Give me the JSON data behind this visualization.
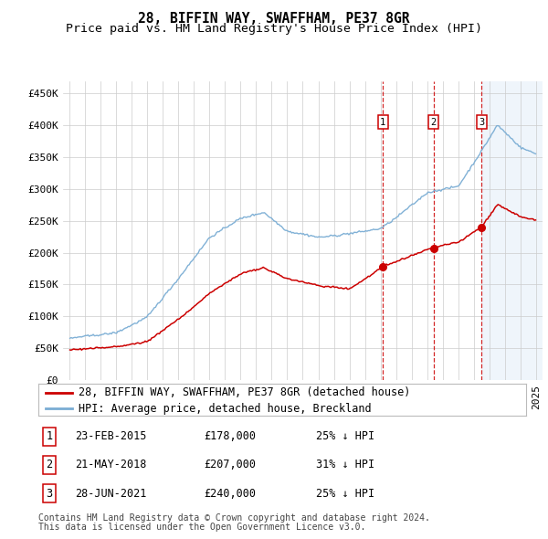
{
  "title": "28, BIFFIN WAY, SWAFFHAM, PE37 8GR",
  "subtitle": "Price paid vs. HM Land Registry's House Price Index (HPI)",
  "ylim": [
    0,
    470000
  ],
  "yticks": [
    0,
    50000,
    100000,
    150000,
    200000,
    250000,
    300000,
    350000,
    400000,
    450000
  ],
  "ytick_labels": [
    "£0",
    "£50K",
    "£100K",
    "£150K",
    "£200K",
    "£250K",
    "£300K",
    "£350K",
    "£400K",
    "£450K"
  ],
  "sale_dates": [
    "23-FEB-2015",
    "21-MAY-2018",
    "28-JUN-2021"
  ],
  "sale_prices": [
    178000,
    207000,
    240000
  ],
  "sale_hpi_diff": [
    "25% ↓ HPI",
    "31% ↓ HPI",
    "25% ↓ HPI"
  ],
  "legend_property": "28, BIFFIN WAY, SWAFFHAM, PE37 8GR (detached house)",
  "legend_hpi": "HPI: Average price, detached house, Breckland",
  "property_color": "#cc0000",
  "hpi_color": "#7aadd4",
  "vline_color": "#cc0000",
  "shade_color": "#ddeeff",
  "footnote1": "Contains HM Land Registry data © Crown copyright and database right 2024.",
  "footnote2": "This data is licensed under the Open Government Licence v3.0.",
  "background_color": "#ffffff",
  "grid_color": "#cccccc",
  "title_fontsize": 10.5,
  "subtitle_fontsize": 9.5,
  "tick_fontsize": 8,
  "legend_fontsize": 8.5,
  "table_fontsize": 8.5,
  "footnote_fontsize": 7
}
